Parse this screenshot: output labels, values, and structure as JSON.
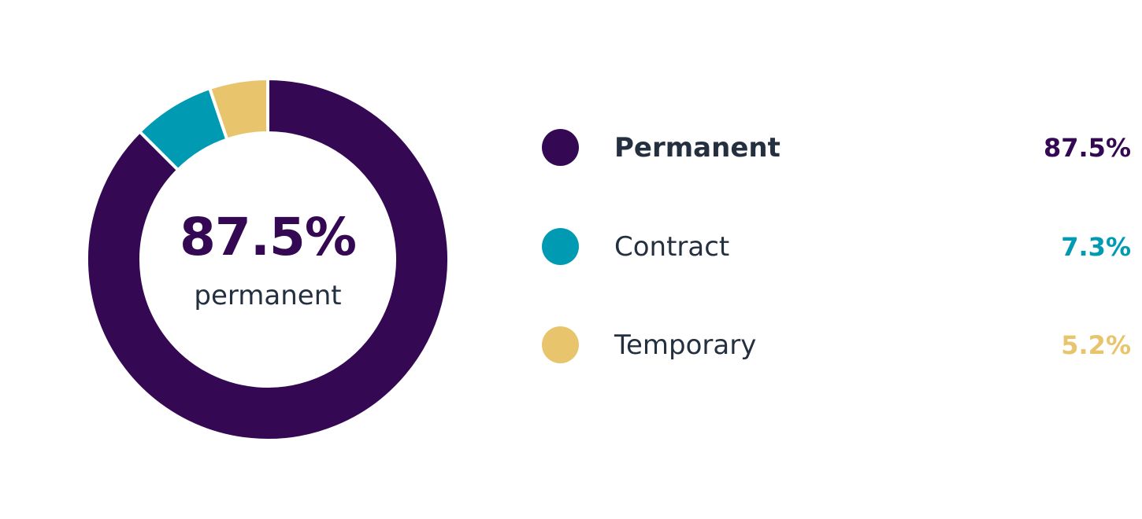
{
  "chart_data": {
    "type": "pie",
    "donut": true,
    "categories": [
      "Permanent",
      "Contract",
      "Temporary"
    ],
    "values": [
      87.5,
      7.3,
      5.2
    ],
    "value_labels": [
      "87.5%",
      "7.3%",
      "5.2%"
    ],
    "colors": [
      "#340852",
      "#009ab3",
      "#e8c56d"
    ],
    "center": {
      "value": "87.5%",
      "label": "permanent"
    },
    "legend_position": "right"
  }
}
